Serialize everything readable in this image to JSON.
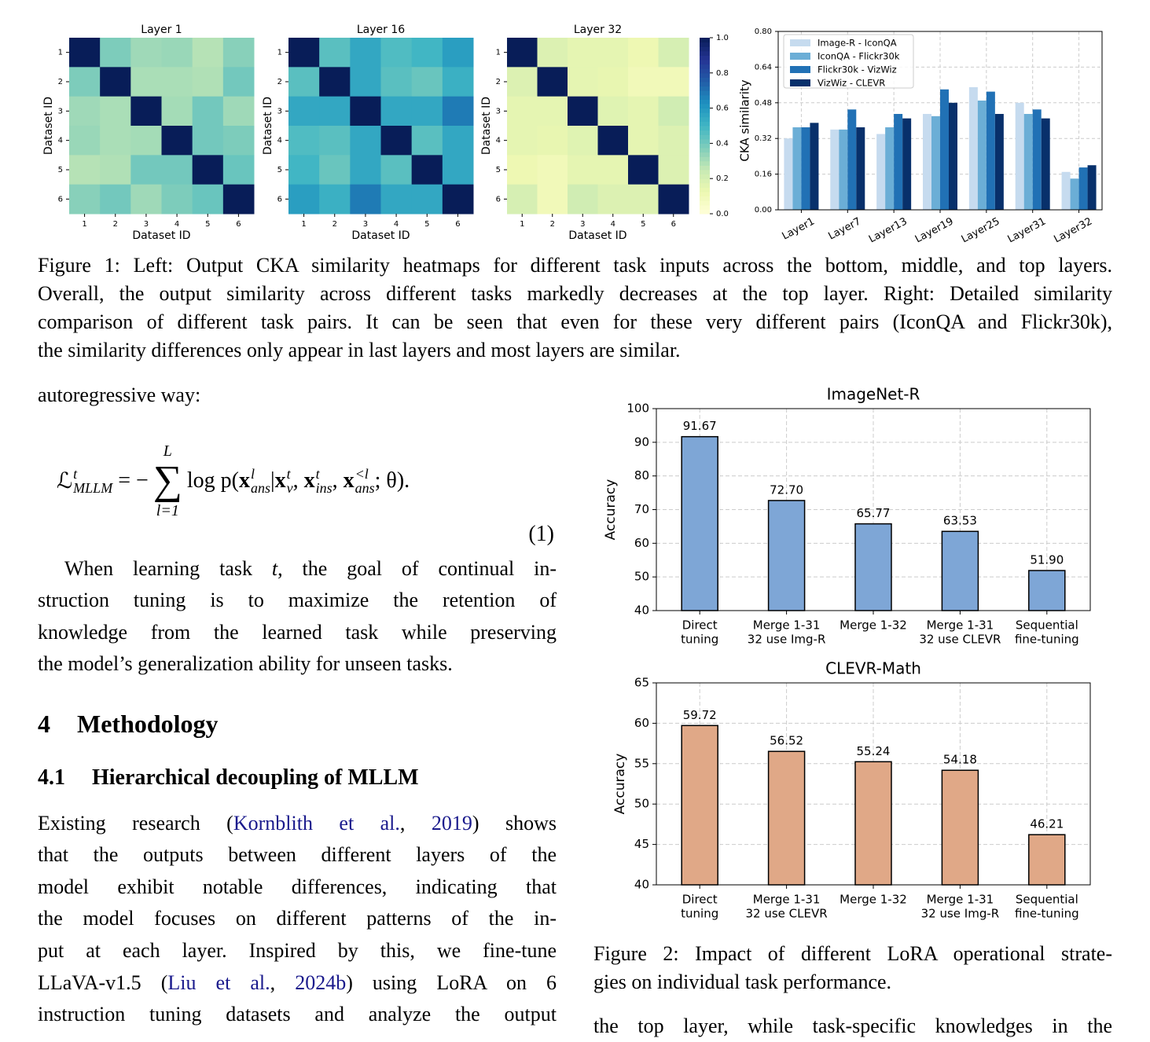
{
  "chart_data": [
    {
      "type": "heatmap",
      "title": "Layer 1",
      "xlabel": "Dataset ID",
      "ylabel": "Dataset ID",
      "colormap": "YlGnBu",
      "clim": [
        0,
        1
      ],
      "x_categories": [
        "1",
        "2",
        "3",
        "4",
        "5",
        "6"
      ],
      "y_categories": [
        "1",
        "2",
        "3",
        "4",
        "5",
        "6"
      ],
      "values": [
        [
          1,
          0.38,
          0.32,
          0.33,
          0.28,
          0.36
        ],
        [
          0.38,
          1,
          0.3,
          0.3,
          0.29,
          0.4
        ],
        [
          0.32,
          0.3,
          1,
          0.31,
          0.4,
          0.32
        ],
        [
          0.33,
          0.3,
          0.31,
          1,
          0.4,
          0.38
        ],
        [
          0.28,
          0.29,
          0.4,
          0.4,
          1,
          0.42
        ],
        [
          0.36,
          0.4,
          0.32,
          0.38,
          0.42,
          1
        ]
      ]
    },
    {
      "type": "heatmap",
      "title": "Layer 16",
      "xlabel": "Dataset ID",
      "ylabel": "Dataset ID",
      "colormap": "YlGnBu",
      "clim": [
        0,
        1
      ],
      "x_categories": [
        "1",
        "2",
        "3",
        "4",
        "5",
        "6"
      ],
      "y_categories": [
        "1",
        "2",
        "3",
        "4",
        "5",
        "6"
      ],
      "values": [
        [
          1,
          0.45,
          0.55,
          0.47,
          0.5,
          0.58
        ],
        [
          0.45,
          1,
          0.55,
          0.45,
          0.42,
          0.52
        ],
        [
          0.55,
          0.55,
          1,
          0.55,
          0.55,
          0.68
        ],
        [
          0.47,
          0.45,
          0.55,
          1,
          0.45,
          0.55
        ],
        [
          0.5,
          0.42,
          0.55,
          0.45,
          1,
          0.55
        ],
        [
          0.58,
          0.52,
          0.68,
          0.55,
          0.55,
          1
        ]
      ]
    },
    {
      "type": "heatmap",
      "title": "Layer 32",
      "xlabel": "Dataset ID",
      "ylabel": "Dataset ID",
      "colormap": "YlGnBu",
      "clim": [
        0,
        1
      ],
      "colorbar": true,
      "cticks": [
        {
          "value": 0,
          "label": "0.0"
        },
        0.2,
        0.4,
        0.6,
        0.8,
        {
          "value": 1,
          "label": "1.0"
        }
      ],
      "x_categories": [
        "1",
        "2",
        "3",
        "4",
        "5",
        "6"
      ],
      "y_categories": [
        "1",
        "2",
        "3",
        "4",
        "5",
        "6"
      ],
      "values": [
        [
          1,
          0.18,
          0.15,
          0.15,
          0.12,
          0.2
        ],
        [
          0.18,
          1,
          0.15,
          0.14,
          0.1,
          0.1
        ],
        [
          0.15,
          0.15,
          1,
          0.17,
          0.15,
          0.22
        ],
        [
          0.15,
          0.14,
          0.17,
          1,
          0.15,
          0.18
        ],
        [
          0.12,
          0.1,
          0.15,
          0.15,
          1,
          0.18
        ],
        [
          0.2,
          0.1,
          0.22,
          0.18,
          0.18,
          1
        ]
      ]
    },
    {
      "type": "grouped_bar",
      "ylabel": "CKA similarity",
      "legend": "upper left",
      "grid": true,
      "categories": [
        "Layer1",
        "Layer7",
        "Layer13",
        "Layer19",
        "Layer25",
        "Layer31",
        "Layer32"
      ],
      "ylim": [
        0,
        0.8
      ],
      "yticks": [
        {
          "value": 0,
          "label": "0.00"
        },
        0.16,
        0.32,
        0.48,
        0.64,
        {
          "value": 0.8,
          "label": "0.80"
        }
      ],
      "series": [
        {
          "name": "Image-R - IconQA",
          "color": "#c6dbef",
          "values": [
            0.32,
            0.36,
            0.34,
            0.43,
            0.55,
            0.48,
            0.17
          ]
        },
        {
          "name": "IconQA - Flickr30k",
          "color": "#6baed6",
          "values": [
            0.37,
            0.36,
            0.37,
            0.42,
            0.49,
            0.43,
            0.14
          ]
        },
        {
          "name": "Flickr30k - VizWiz",
          "color": "#2171b5",
          "values": [
            0.37,
            0.45,
            0.43,
            0.54,
            0.53,
            0.45,
            0.19
          ]
        },
        {
          "name": "VizWiz - CLEVR",
          "color": "#08306b",
          "values": [
            0.39,
            0.37,
            0.41,
            0.48,
            0.43,
            0.41,
            0.2
          ]
        }
      ]
    },
    {
      "type": "bar",
      "title": "ImageNet-R",
      "ylabel": "Accuracy",
      "color": "#7ea6d6",
      "grid": true,
      "categories": [
        [
          "Direct",
          "tuning"
        ],
        [
          "Merge 1-31",
          "32 use Img-R"
        ],
        [
          "Merge 1-32"
        ],
        [
          "Merge 1-31",
          "32 use CLEVR"
        ],
        [
          "Sequential",
          "fine-tuning"
        ]
      ],
      "values": [
        91.67,
        72.7,
        65.77,
        63.53,
        51.9
      ],
      "value_labels": [
        "91.67",
        "72.70",
        "65.77",
        "63.53",
        "51.90"
      ],
      "ylim": [
        40,
        100
      ],
      "yticks": [
        40,
        50,
        60,
        70,
        80,
        90,
        100
      ]
    },
    {
      "type": "bar",
      "title": "CLEVR-Math",
      "ylabel": "Accuracy",
      "color": "#e0a887",
      "grid": true,
      "categories": [
        [
          "Direct",
          "tuning"
        ],
        [
          "Merge 1-31",
          "32 use CLEVR"
        ],
        [
          "Merge 1-32"
        ],
        [
          "Merge 1-31",
          "32 use Img-R"
        ],
        [
          "Sequential",
          "fine-tuning"
        ]
      ],
      "values": [
        59.72,
        56.52,
        55.24,
        54.18,
        46.21
      ],
      "ylim": [
        40,
        65
      ],
      "yticks": [
        40,
        45,
        50,
        55,
        60,
        65
      ]
    }
  ],
  "text": {
    "caption1": [
      [
        "Figure 1: Left: Output CKA similarity heatmaps for different task inputs across the bottom, middle, and top layers."
      ],
      [
        "Overall, the output similarity across different tasks markedly decreases at the top layer. Right: Detailed similarity"
      ],
      [
        "comparison of different task pairs. It can be seen that even for these very different pairs (IconQA and Flickr30k),"
      ],
      [
        "the similarity differences only appear in last layers and most layers are similar."
      ]
    ],
    "intro": [
      [
        "autoregressive way:"
      ]
    ],
    "equation": {
      "number": "(1)",
      "parts": [
        {
          "base": "ℒ",
          "sup": "t",
          "sub": "MLLM"
        },
        {
          "base": " = −"
        },
        {
          "sum": "∑",
          "top": "L",
          "bottom": "l=1"
        },
        {
          "base": "log p("
        },
        {
          "base": "x",
          "bold": true,
          "sup": "l",
          "sub": "ans"
        },
        {
          "base": "|"
        },
        {
          "base": "x",
          "bold": true,
          "sup": "t",
          "sub": "v"
        },
        {
          "base": ", "
        },
        {
          "base": "x",
          "bold": true,
          "sup": "t",
          "sub": "ins"
        },
        {
          "base": ", "
        },
        {
          "base": "x",
          "bold": true,
          "sup": "<l",
          "sub": "ans"
        },
        {
          "base": "; θ)."
        }
      ]
    },
    "para1": [
      [
        "When learning task ",
        {
          "math": "t"
        },
        ", the goal of continual in-"
      ],
      [
        "struction tuning is to maximize the retention of"
      ],
      [
        "knowledge from the learned task while preserving"
      ],
      [
        "the model’s generalization ability for unseen tasks."
      ]
    ],
    "section": {
      "number": "4",
      "title": "Methodology"
    },
    "subsection": {
      "number": "4.1",
      "title": "Hierarchical decoupling of MLLM"
    },
    "para2": [
      [
        "Existing research (",
        {
          "link": "Kornblith et al."
        },
        ", ",
        {
          "link": "2019"
        },
        ") shows"
      ],
      [
        "that the outputs between different layers of the"
      ],
      [
        "model exhibit notable differences, indicating that"
      ],
      [
        "the model focuses on different patterns of the in-"
      ],
      [
        "put at each layer.  Inspired by this, we fine-tune"
      ],
      [
        "LLaVA-v1.5 (",
        {
          "link": "Liu et al."
        },
        ", ",
        {
          "link": "2024b"
        },
        ") using LoRA on 6"
      ],
      [
        "instruction tuning datasets and analyze the output"
      ]
    ],
    "caption2": [
      [
        "Figure 2: Impact of different LoRA operational strate-"
      ],
      [
        "gies on individual task performance."
      ]
    ],
    "para3": [
      [
        "the top layer, while task-specific knowledges in the"
      ]
    ]
  }
}
